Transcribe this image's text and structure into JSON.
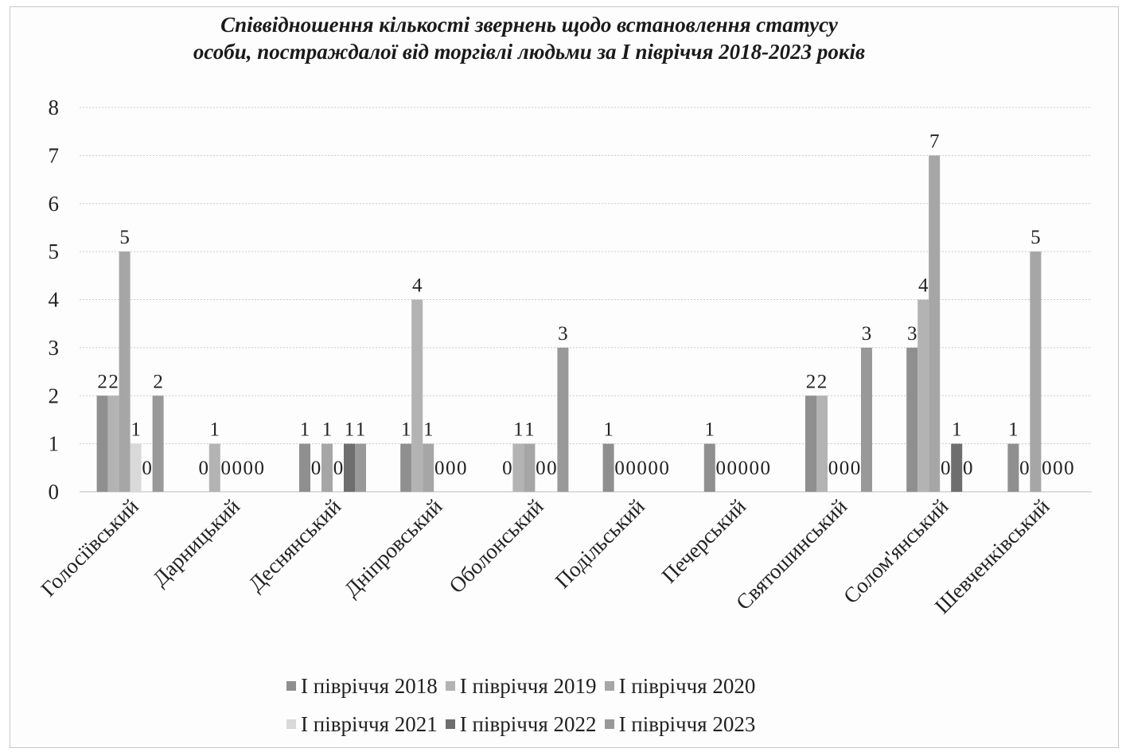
{
  "chart_data": {
    "type": "bar",
    "title_lines": [
      "Співвідношення кількості звернень щодо встановлення статусу",
      "особи, постраждалої від торгівлі людьми за І півріччя 2018-2023 років"
    ],
    "categories": [
      "Голосіївський",
      "Дарницький",
      "Деснянський",
      "Дніпровський",
      "Оболонський",
      "Подільський",
      "Печерський",
      "Святошинський",
      "Солом'янський",
      "Шевченківський"
    ],
    "ylim": [
      0,
      8
    ],
    "yticks": [
      "0",
      "1",
      "2",
      "3",
      "4",
      "5",
      "6",
      "7",
      "8"
    ],
    "grid": true,
    "legend_position": "bottom",
    "series": [
      {
        "name": "І півріччя 2018",
        "color": "#8f8f8f",
        "values": [
          2,
          0,
          1,
          1,
          0,
          1,
          1,
          2,
          3,
          1
        ]
      },
      {
        "name": "І півріччя 2019",
        "color": "#b3b3b3",
        "values": [
          2,
          1,
          0,
          4,
          1,
          0,
          0,
          2,
          4,
          0
        ]
      },
      {
        "name": "І півріччя 2020",
        "color": "#a6a6a6",
        "values": [
          5,
          0,
          1,
          1,
          1,
          0,
          0,
          0,
          7,
          5
        ]
      },
      {
        "name": "І півріччя 2021",
        "color": "#d9d9d9",
        "values": [
          1,
          0,
          0,
          0,
          0,
          0,
          0,
          0,
          0,
          0
        ]
      },
      {
        "name": "І півріччя 2022",
        "color": "#6e6e6e",
        "values": [
          0,
          0,
          1,
          0,
          0,
          0,
          0,
          0,
          1,
          0
        ]
      },
      {
        "name": "І півріччя 2023",
        "color": "#999999",
        "values": [
          2,
          0,
          1,
          0,
          3,
          0,
          0,
          3,
          0,
          0
        ]
      }
    ]
  }
}
